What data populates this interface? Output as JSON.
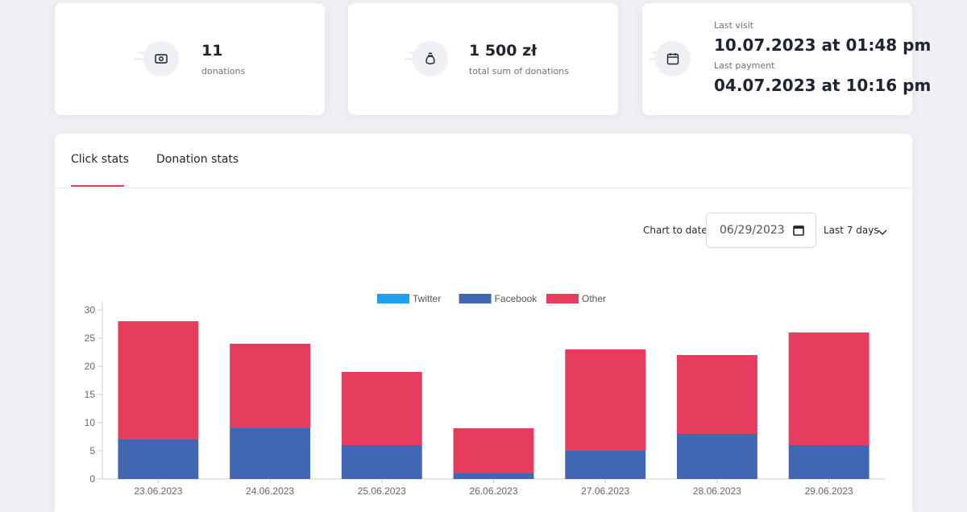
{
  "stats": {
    "donations": {
      "value": "11",
      "label": "donations",
      "icon": "cash-icon"
    },
    "sum": {
      "value": "1 500 zł",
      "label": "total sum of donations",
      "icon": "money-bag-icon"
    },
    "visits": {
      "icon": "calendar-icon",
      "last_visit_label": "Last visit",
      "last_visit_value": "10.07.2023 at 01:48 pm",
      "last_payment_label": "Last payment",
      "last_payment_value": "04.07.2023 at 10:16 pm"
    }
  },
  "tabs": [
    {
      "label": "Click stats",
      "active": true
    },
    {
      "label": "Donation stats",
      "active": false
    }
  ],
  "controls": {
    "chart_to_date_label": "Chart to date",
    "date_value": "06/29/2023",
    "range_value": "Last 7 days"
  },
  "colors": {
    "accent": "#e53e4c",
    "twitter": "#1da1f2",
    "facebook": "#4267b2",
    "other": "#e63c5e"
  },
  "chart_data": {
    "type": "bar",
    "stacked": true,
    "categories": [
      "23.06.2023",
      "24.06.2023",
      "25.06.2023",
      "26.06.2023",
      "27.06.2023",
      "28.06.2023",
      "29.06.2023"
    ],
    "series": [
      {
        "name": "Twitter",
        "color": "#1da1f2",
        "values": [
          0,
          0,
          0,
          0,
          0,
          0,
          0
        ]
      },
      {
        "name": "Facebook",
        "color": "#4267b2",
        "values": [
          7,
          9,
          6,
          1,
          5,
          8,
          6
        ]
      },
      {
        "name": "Other",
        "color": "#e63c5e",
        "values": [
          21,
          15,
          13,
          8,
          18,
          14,
          20
        ]
      }
    ],
    "yticks": [
      0,
      5,
      10,
      15,
      20,
      25,
      30
    ],
    "ylim": [
      0,
      30
    ],
    "legend": "top-center",
    "grid": false
  }
}
